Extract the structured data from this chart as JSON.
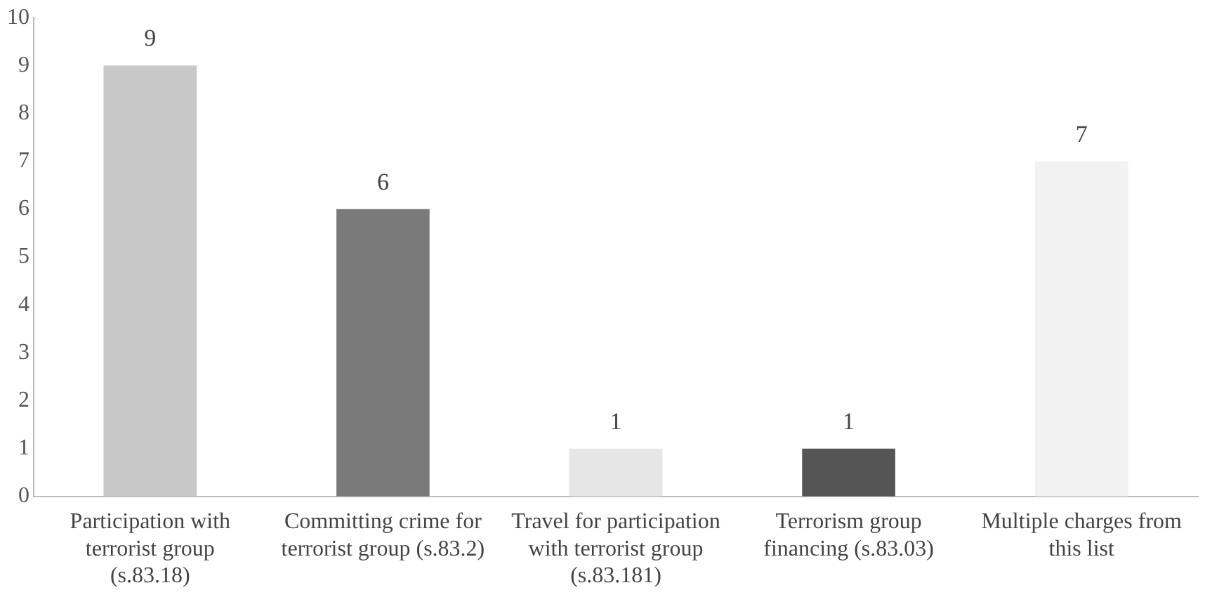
{
  "chart_data": {
    "type": "bar",
    "categories": [
      "Participation with terrorist group (s.83.18)",
      "Committing crime for terrorist group (s.83.2)",
      "Travel for participation with terrorist group (s.83.181)",
      "Terrorism group financing (s.83.03)",
      "Multiple charges from this list"
    ],
    "values": [
      9,
      6,
      1,
      1,
      7
    ],
    "colors": [
      "#c8c8c8",
      "#7a7a7a",
      "#e6e6e6",
      "#555555",
      "#f2f2f2"
    ],
    "ylim": [
      0,
      10
    ],
    "yticks": [
      0,
      1,
      2,
      3,
      4,
      5,
      6,
      7,
      8,
      9,
      10
    ],
    "grid": false,
    "legend": false,
    "data_labels": true
  }
}
